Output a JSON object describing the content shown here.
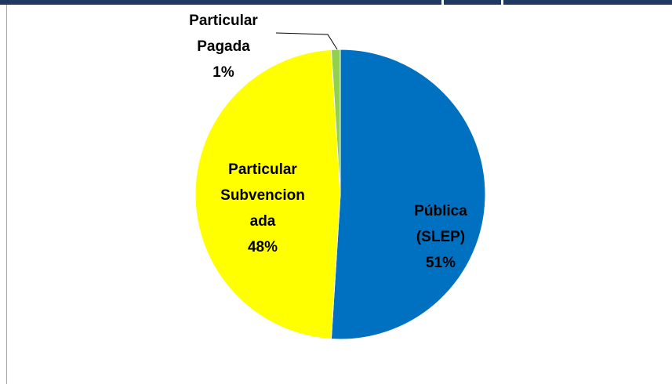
{
  "chart_data": {
    "type": "pie",
    "categories": [
      "Pública (SLEP)",
      "Particular Subvencionada",
      "Particular Pagada"
    ],
    "values": [
      51,
      48,
      1
    ],
    "value_labels": [
      "51%",
      "48%",
      "1%"
    ],
    "colors": [
      "#0070c0",
      "#ffff00",
      "#92d050"
    ]
  }
}
